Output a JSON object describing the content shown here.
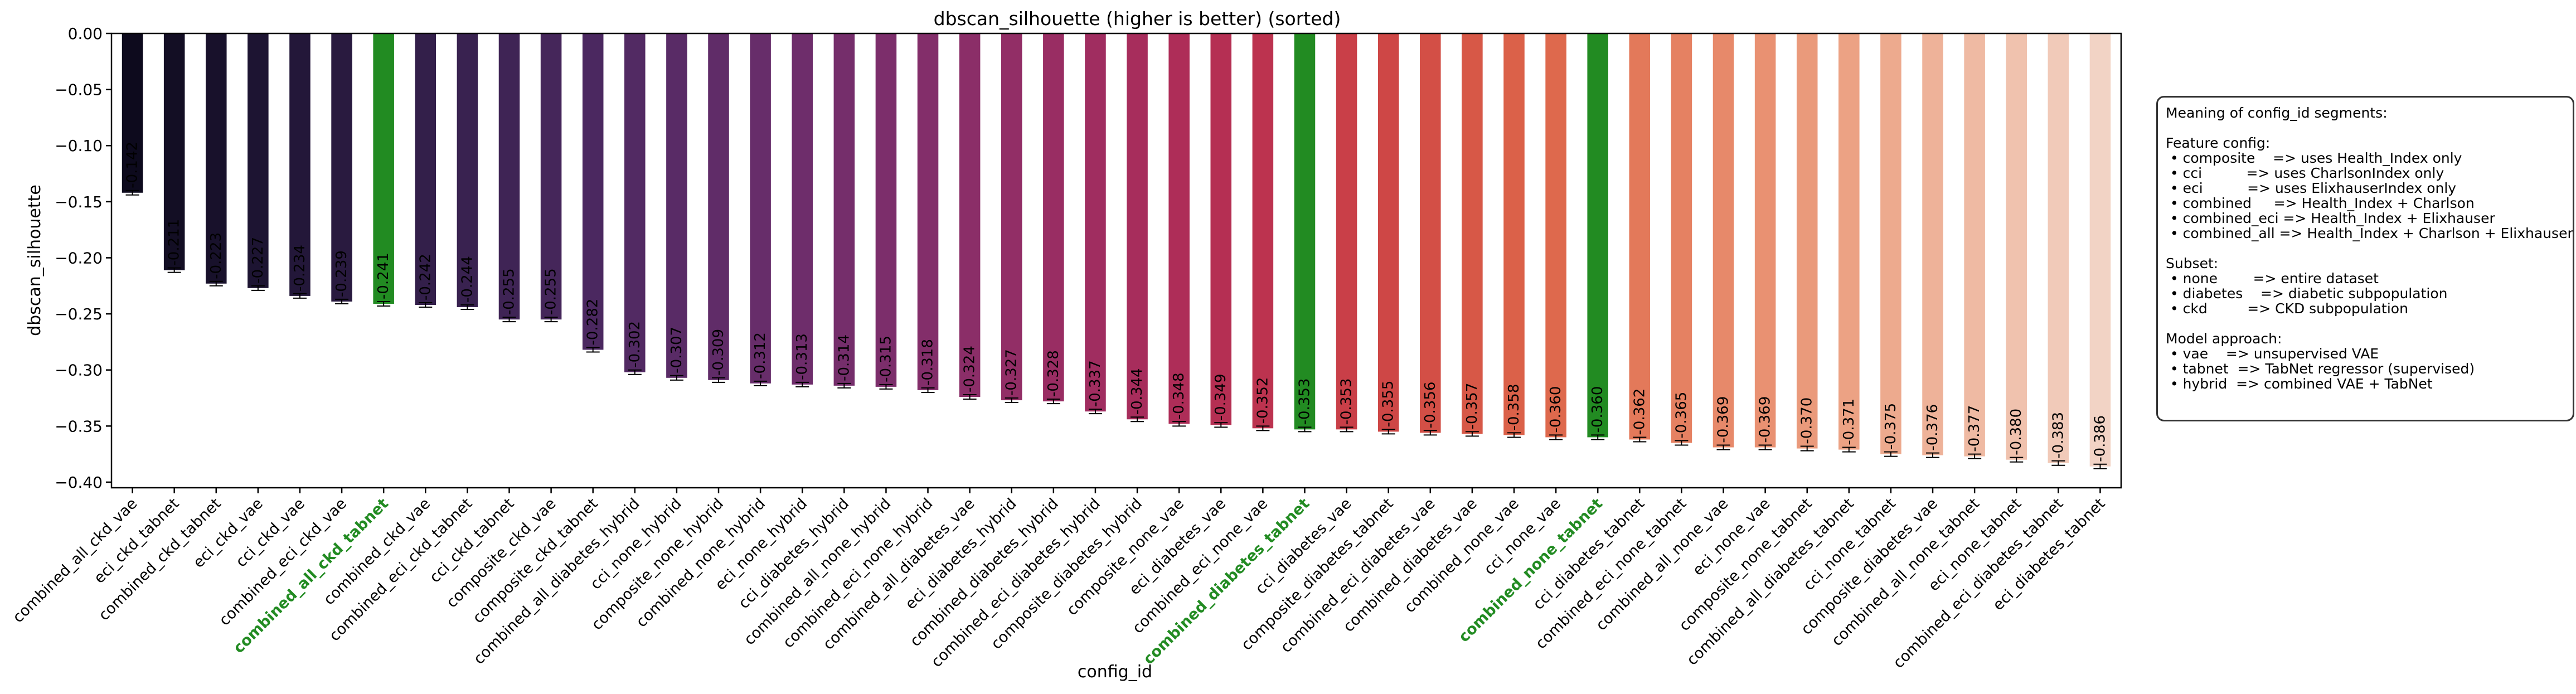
{
  "chart_data": {
    "type": "bar",
    "title": "dbscan_silhouette (higher is better) (sorted)",
    "xlabel": "config_id",
    "ylabel": "dbscan_silhouette",
    "ylim": [
      -0.405,
      0.0
    ],
    "yticks": [
      0.0,
      -0.05,
      -0.1,
      -0.15,
      -0.2,
      -0.25,
      -0.3,
      -0.35,
      -0.4
    ],
    "ytick_labels": [
      "0.00",
      "−0.05",
      "−0.10",
      "−0.15",
      "−0.20",
      "−0.25",
      "−0.30",
      "−0.35",
      "−0.40"
    ],
    "highlight_color": "#228b22",
    "categories": [
      "combined_all_ckd_vae",
      "eci_ckd_tabnet",
      "combined_ckd_tabnet",
      "eci_ckd_vae",
      "cci_ckd_vae",
      "combined_eci_ckd_vae",
      "combined_all_ckd_tabnet",
      "combined_ckd_vae",
      "combined_eci_ckd_tabnet",
      "cci_ckd_tabnet",
      "composite_ckd_vae",
      "composite_ckd_tabnet",
      "combined_all_diabetes_hybrid",
      "cci_none_hybrid",
      "composite_none_hybrid",
      "combined_none_hybrid",
      "eci_none_hybrid",
      "cci_diabetes_hybrid",
      "combined_all_none_hybrid",
      "combined_eci_none_hybrid",
      "combined_all_diabetes_vae",
      "eci_diabetes_hybrid",
      "combined_diabetes_hybrid",
      "combined_eci_diabetes_hybrid",
      "composite_diabetes_hybrid",
      "composite_none_vae",
      "eci_diabetes_vae",
      "combined_eci_none_vae",
      "combined_diabetes_tabnet",
      "cci_diabetes_vae",
      "composite_diabetes_tabnet",
      "combined_eci_diabetes_vae",
      "combined_diabetes_vae",
      "combined_none_vae",
      "cci_none_vae",
      "combined_none_tabnet",
      "cci_diabetes_tabnet",
      "combined_eci_none_tabnet",
      "combined_all_none_vae",
      "eci_none_vae",
      "composite_none_tabnet",
      "combined_all_diabetes_tabnet",
      "cci_none_tabnet",
      "composite_diabetes_vae",
      "combined_all_none_tabnet",
      "eci_none_tabnet",
      "combined_eci_diabetes_tabnet",
      "eci_diabetes_tabnet"
    ],
    "values": [
      -0.142,
      -0.211,
      -0.223,
      -0.227,
      -0.234,
      -0.239,
      -0.241,
      -0.242,
      -0.244,
      -0.255,
      -0.255,
      -0.282,
      -0.302,
      -0.307,
      -0.309,
      -0.312,
      -0.313,
      -0.314,
      -0.315,
      -0.318,
      -0.324,
      -0.327,
      -0.328,
      -0.337,
      -0.344,
      -0.348,
      -0.349,
      -0.352,
      -0.353,
      -0.353,
      -0.355,
      -0.356,
      -0.357,
      -0.358,
      -0.36,
      -0.36,
      -0.362,
      -0.365,
      -0.369,
      -0.369,
      -0.37,
      -0.371,
      -0.375,
      -0.376,
      -0.377,
      -0.38,
      -0.383,
      -0.386
    ],
    "value_labels": [
      "-0.142",
      "-0.211",
      "-0.223",
      "-0.227",
      "-0.234",
      "-0.239",
      "-0.241",
      "-0.242",
      "-0.244",
      "-0.255",
      "-0.255",
      "-0.282",
      "-0.302",
      "-0.307",
      "-0.309",
      "-0.312",
      "-0.313",
      "-0.314",
      "-0.315",
      "-0.318",
      "-0.324",
      "-0.327",
      "-0.328",
      "-0.337",
      "-0.344",
      "-0.348",
      "-0.349",
      "-0.352",
      "-0.353",
      "-0.353",
      "-0.355",
      "-0.356",
      "-0.357",
      "-0.358",
      "-0.360",
      "-0.360",
      "-0.362",
      "-0.365",
      "-0.369",
      "-0.369",
      "-0.370",
      "-0.371",
      "-0.375",
      "-0.376",
      "-0.377",
      "-0.380",
      "-0.383",
      "-0.386"
    ],
    "errors": [
      0.002,
      0.002,
      0.002,
      0.002,
      0.002,
      0.002,
      0.002,
      0.002,
      0.002,
      0.002,
      0.002,
      0.002,
      0.002,
      0.002,
      0.002,
      0.002,
      0.002,
      0.002,
      0.002,
      0.002,
      0.002,
      0.002,
      0.002,
      0.002,
      0.002,
      0.002,
      0.002,
      0.002,
      0.002,
      0.002,
      0.002,
      0.002,
      0.002,
      0.002,
      0.002,
      0.002,
      0.002,
      0.002,
      0.002,
      0.002,
      0.002,
      0.002,
      0.002,
      0.002,
      0.002,
      0.002,
      0.002,
      0.002
    ],
    "highlighted": [
      "combined_all_ckd_tabnet",
      "combined_diabetes_tabnet",
      "combined_none_tabnet"
    ],
    "bar_colors": [
      "#0d0a1d",
      "#130e24",
      "#18112b",
      "#1d1432",
      "#231739",
      "#291a3f",
      "#228b22",
      "#331f4a",
      "#392250",
      "#3f2455",
      "#45265a",
      "#4b2860",
      "#522a63",
      "#592b66",
      "#602c68",
      "#672d6a",
      "#6e2d6b",
      "#752e6b",
      "#7c2e6b",
      "#832e6a",
      "#8b2e68",
      "#922e66",
      "#992d63",
      "#a02d60",
      "#a72d5c",
      "#ae2d58",
      "#b52f53",
      "#bc334f",
      "#228b22",
      "#c93f48",
      "#ce4746",
      "#d34f46",
      "#d75847",
      "#db6149",
      "#de694d",
      "#228b22",
      "#e3795a",
      "#e58162",
      "#e7896a",
      "#e99172",
      "#ea9a7b",
      "#eca284",
      "#edaa8e",
      "#eeb299",
      "#efbaa3",
      "#f0c2ae",
      "#f1cab9",
      "#f2d3c5"
    ],
    "grid": false,
    "legend": "none"
  },
  "annotation": {
    "placement": "right",
    "lines": [
      "Meaning of config_id segments:",
      "",
      "Feature config:",
      " • composite    => uses Health_Index only",
      " • cci          => uses CharlsonIndex only",
      " • eci          => uses ElixhauserIndex only",
      " • combined     => Health_Index + Charlson",
      " • combined_eci => Health_Index + Elixhauser",
      " • combined_all => Health_Index + Charlson + Elixhauser",
      "",
      "Subset:",
      " • none        => entire dataset",
      " • diabetes    => diabetic subpopulation",
      " • ckd         => CKD subpopulation",
      "",
      "Model approach:",
      " • vae    => unsupervised VAE",
      " • tabnet  => TabNet regressor (supervised)",
      " • hybrid  => combined VAE + TabNet"
    ]
  }
}
